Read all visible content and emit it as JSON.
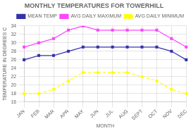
{
  "chart_data": {
    "type": "line",
    "title": "MONTHLY TEMPERATURES FOR TOWERHILL",
    "x_label": "MONTH",
    "y_label": "TEMPERATURE IN DEGREES C",
    "categories": [
      "JAN",
      "FEB",
      "MAR",
      "APR",
      "MAY",
      "JUN",
      "JUL",
      "AUG",
      "SEPT",
      "OCT",
      "NOV",
      "DEC"
    ],
    "series": [
      {
        "name": "MEAN TEMP",
        "color": "#3333AA",
        "marker": "square",
        "line_style": "solid",
        "values": [
          26,
          27,
          27,
          28,
          29,
          29,
          29,
          29,
          29,
          29,
          28,
          26
        ]
      },
      {
        "name": "AVG DAILY MAXIMUM",
        "color": "#FF44FF",
        "marker": "square",
        "line_style": "solid",
        "values": [
          29,
          30,
          31,
          33,
          34,
          33,
          33,
          33,
          33,
          33,
          31,
          29
        ]
      },
      {
        "name": "AVG DAILY MINIMUM",
        "color": "#FFFF00",
        "marker": "diamond",
        "line_style": "dashed",
        "values": [
          18,
          18,
          19,
          21,
          23,
          23,
          23,
          23,
          22,
          21,
          19,
          18
        ]
      }
    ],
    "ylim": [
      16,
      34
    ],
    "yticks": [
      16,
      18,
      20,
      22,
      24,
      26,
      28,
      30,
      32,
      34
    ],
    "grid": true,
    "legend": "upper right"
  }
}
